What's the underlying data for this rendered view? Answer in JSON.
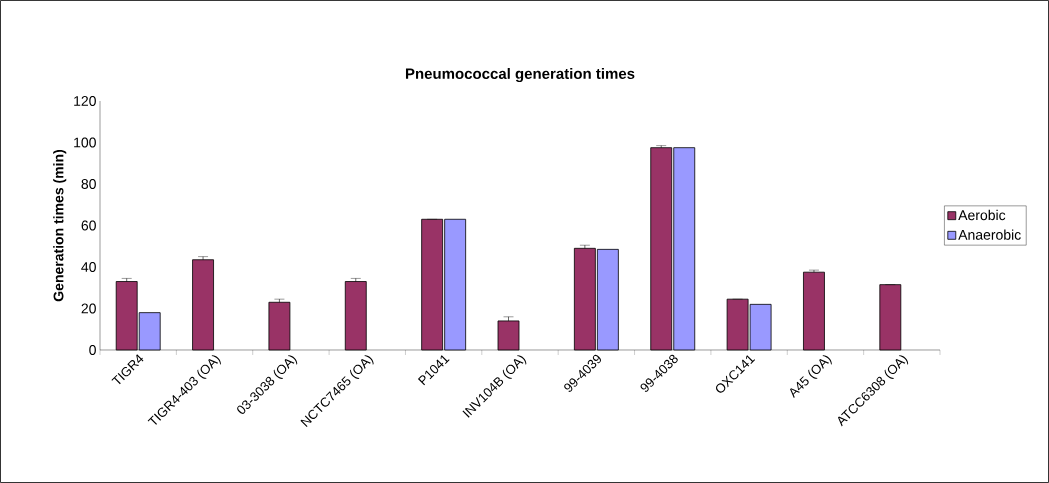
{
  "chart_data": {
    "type": "bar",
    "title": "Pneumococcal generation times",
    "ylabel": "Generation times (min)",
    "categories": [
      "TIGR4",
      "TIGR4-403 (OA)",
      "03-3038  (OA)",
      "NCTC7465 (OA)",
      "P1041",
      "INV104B (OA)",
      "99-4039",
      "99-4038",
      "OXC141",
      "A45 (OA)",
      "ATCC6308 (OA)"
    ],
    "series": [
      {
        "name": "Aerobic",
        "color": "#993366",
        "values": [
          33,
          43.5,
          23,
          33,
          63,
          14,
          49,
          97.5,
          24.5,
          37.5,
          31.5
        ],
        "errors": [
          1.5,
          1.5,
          1.5,
          1.5,
          null,
          2,
          1.5,
          1,
          null,
          1,
          null
        ]
      },
      {
        "name": "Anaerobic",
        "color": "#9999ff",
        "values": [
          18,
          null,
          null,
          null,
          63,
          null,
          48.5,
          97.5,
          22,
          null,
          null
        ]
      }
    ],
    "ylim": [
      0,
      120
    ],
    "yticks": [
      0,
      20,
      40,
      60,
      80,
      100,
      120
    ],
    "grid": false,
    "legend": "right"
  }
}
